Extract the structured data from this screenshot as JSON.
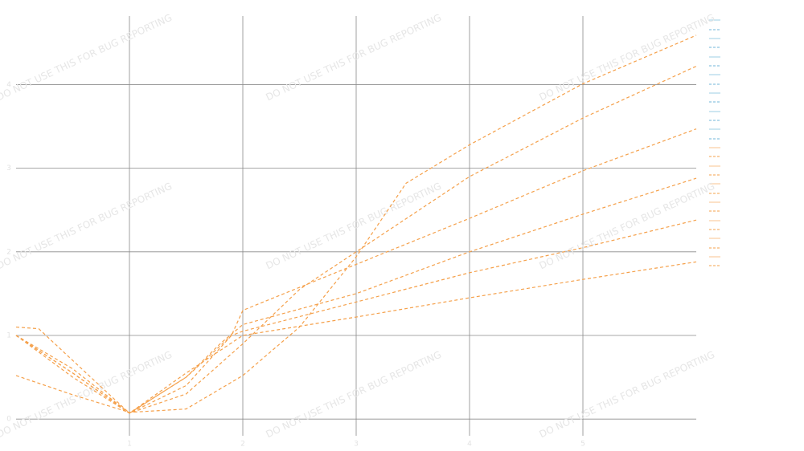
{
  "chart_data": {
    "type": "line",
    "xlim": [
      0,
      6
    ],
    "ylim": [
      -0.2,
      4.82
    ],
    "xticks": [
      1,
      2,
      3,
      4,
      5
    ],
    "yticks": [
      0,
      1,
      2,
      3,
      4
    ],
    "grid": true,
    "watermark": "DO NOT USE THIS FOR BUG REPORTING",
    "series": [
      {
        "color": "#f5a04a",
        "dashed": true,
        "x": [
          0,
          0.5,
          1,
          1.5,
          2,
          2.5,
          3,
          3.44,
          4,
          5,
          6
        ],
        "values": [
          0.52,
          0.29,
          0.08,
          0.12,
          0.52,
          1.1,
          1.94,
          2.82,
          3.28,
          4.01,
          4.59
        ]
      },
      {
        "color": "#f5a04a",
        "dashed": true,
        "x": [
          0,
          0.5,
          1,
          1.5,
          2,
          2.5,
          3,
          4,
          5,
          6
        ],
        "values": [
          1.0,
          0.55,
          0.07,
          0.3,
          0.9,
          1.55,
          2.0,
          2.9,
          3.6,
          4.22
        ]
      },
      {
        "color": "#f5a04a",
        "dashed": true,
        "x": [
          0,
          0.5,
          1,
          1.5,
          1.9,
          2,
          3,
          4,
          5,
          6
        ],
        "values": [
          1.0,
          0.5,
          0.07,
          0.4,
          1.0,
          1.3,
          1.85,
          2.4,
          2.97,
          3.47
        ]
      },
      {
        "color": "#f5a04a",
        "dashed": true,
        "x": [
          0,
          0.2,
          0.5,
          1,
          1.5,
          1.8,
          2,
          3,
          4,
          5,
          6
        ],
        "values": [
          1.1,
          1.08,
          0.7,
          0.07,
          0.5,
          0.9,
          1.13,
          1.5,
          2.0,
          2.45,
          2.88
        ]
      },
      {
        "color": "#f5a04a",
        "dashed": true,
        "x": [
          0,
          0.5,
          1,
          1.5,
          1.9,
          2,
          3,
          4,
          5,
          6
        ],
        "values": [
          1.0,
          0.6,
          0.07,
          0.5,
          1.0,
          1.05,
          1.4,
          1.75,
          2.05,
          2.38
        ]
      },
      {
        "color": "#f5a04a",
        "dashed": true,
        "x": [
          0,
          0.5,
          1,
          1.5,
          2,
          3,
          4,
          5,
          6
        ],
        "values": [
          1.0,
          0.55,
          0.07,
          0.55,
          1.0,
          1.22,
          1.45,
          1.67,
          1.88
        ]
      }
    ]
  }
}
